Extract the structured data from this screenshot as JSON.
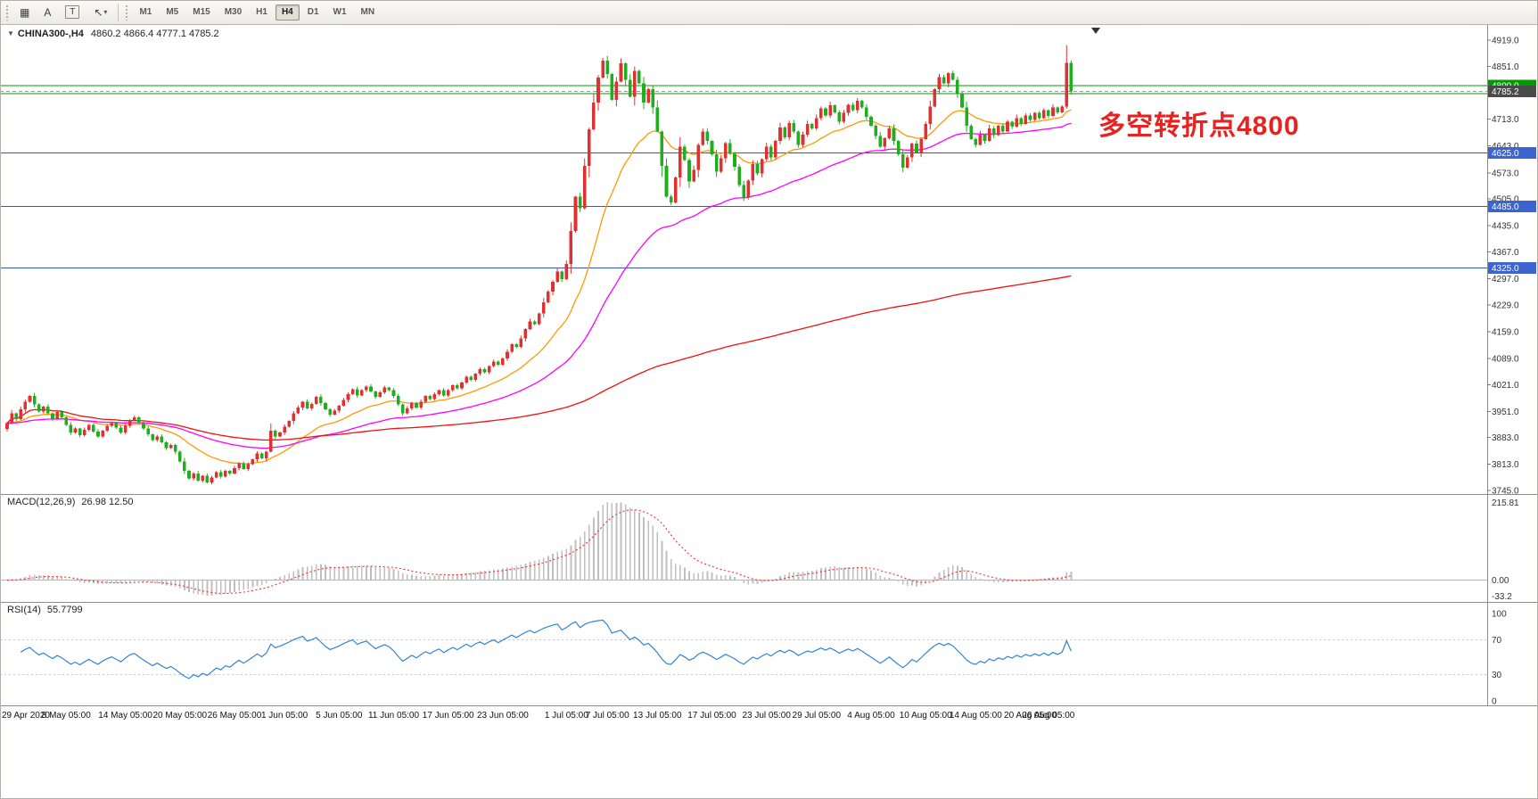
{
  "toolbar": {
    "tools": [
      {
        "name": "grid",
        "glyph": "▦"
      },
      {
        "name": "label",
        "glyph": "A"
      },
      {
        "name": "textbox",
        "glyph": "T"
      },
      {
        "name": "arrows",
        "glyph": "↖"
      },
      {
        "name": "caret",
        "glyph": "▾"
      }
    ],
    "timeframes": [
      {
        "label": "M1"
      },
      {
        "label": "M5"
      },
      {
        "label": "M15"
      },
      {
        "label": "M30"
      },
      {
        "label": "H1"
      },
      {
        "label": "H4",
        "active": true
      },
      {
        "label": "D1"
      },
      {
        "label": "W1"
      },
      {
        "label": "MN"
      }
    ]
  },
  "chart": {
    "marker_glyph": "▼",
    "symbol_label": "CHINA300-,H4",
    "quote": "4860.2 4866.4 4777.1 4785.2",
    "annotation": {
      "text": "多空转折点4800",
      "color": "#e62222"
    }
  },
  "chart_data": {
    "type": "candlestick",
    "symbol": "CHINA300-",
    "timeframe": "H4",
    "ohlc_current": {
      "open": 4860.2,
      "high": 4866.4,
      "low": 4777.1,
      "close": 4785.2
    },
    "up_color": "#e03030",
    "down_color": "#1fae1f",
    "first_open": 3905,
    "closes": [
      3920,
      3946,
      3931,
      3956,
      3976,
      3991,
      3969,
      3951,
      3963,
      3946,
      3931,
      3949,
      3936,
      3916,
      3896,
      3906,
      3889,
      3903,
      3916,
      3899,
      3886,
      3901,
      3913,
      3921,
      3909,
      3896,
      3913,
      3929,
      3936,
      3921,
      3906,
      3891,
      3876,
      3886,
      3871,
      3856,
      3863,
      3846,
      3821,
      3796,
      3776,
      3789,
      3771,
      3783,
      3766,
      3779,
      3793,
      3781,
      3796,
      3789,
      3803,
      3816,
      3801,
      3813,
      3826,
      3841,
      3829,
      3846,
      3901,
      3886,
      3896,
      3911,
      3926,
      3946,
      3961,
      3976,
      3959,
      3971,
      3989,
      3973,
      3956,
      3943,
      3953,
      3966,
      3981,
      3996,
      4009,
      3993,
      4006,
      4016,
      4003,
      3989,
      4001,
      4013,
      4006,
      3991,
      3969,
      3946,
      3959,
      3973,
      3961,
      3976,
      3991,
      3983,
      3996,
      4006,
      3993,
      4006,
      4019,
      4011,
      4026,
      4041,
      4033,
      4049,
      4061,
      4053,
      4069,
      4081,
      4073,
      4089,
      4106,
      4126,
      4119,
      4141,
      4166,
      4186,
      4179,
      4206,
      4236,
      4263,
      4289,
      4316,
      4296,
      4336,
      4421,
      4511,
      4481,
      4591,
      4686,
      4756,
      4821,
      4866,
      4831,
      4763,
      4811,
      4859,
      4816,
      4771,
      4839,
      4806,
      4756,
      4791,
      4743,
      4681,
      4591,
      4511,
      4496,
      4561,
      4641,
      4606,
      4551,
      4581,
      4646,
      4681,
      4656,
      4621,
      4576,
      4611,
      4651,
      4623,
      4589,
      4541,
      4509,
      4553,
      4596,
      4571,
      4609,
      4641,
      4613,
      4656,
      4691,
      4666,
      4703,
      4681,
      4646,
      4673,
      4701,
      4689,
      4716,
      4741,
      4723,
      4749,
      4731,
      4706,
      4729,
      4751,
      4736,
      4761,
      4743,
      4719,
      4696,
      4669,
      4641,
      4663,
      4689,
      4656,
      4621,
      4586,
      4613,
      4649,
      4626,
      4661,
      4701,
      4746,
      4791,
      4823,
      4806,
      4833,
      4816,
      4781,
      4743,
      4696,
      4661,
      4646,
      4673,
      4656,
      4689,
      4671,
      4696,
      4681,
      4706,
      4693,
      4716,
      4701,
      4723,
      4711,
      4729,
      4716,
      4736,
      4721,
      4743,
      4731,
      4746,
      4860,
      4785.2
    ],
    "overrides": {
      "233": {
        "high": 4906,
        "low": 4740
      },
      "234": {
        "open": 4860.2,
        "high": 4866.4,
        "low": 4777.1,
        "close": 4785.2
      }
    },
    "price_axis": {
      "min": 3745,
      "max": 4919,
      "ticks": [
        4919,
        4851,
        4713,
        4643,
        4573,
        4505,
        4435,
        4367,
        4297,
        4229,
        4159,
        4089,
        4021,
        3951,
        3883,
        3813,
        3745
      ]
    },
    "price_tags": [
      {
        "value": 4800.0,
        "label": "4800.0",
        "bg": "#009a00"
      },
      {
        "value": 4625.0,
        "label": "4625.0",
        "bg": "#3c64d0"
      },
      {
        "value": 4485.0,
        "label": "4485.0",
        "bg": "#3c64d0"
      },
      {
        "value": 4325.0,
        "label": "4325.0",
        "bg": "#3c64d0"
      },
      {
        "value": 4785.2,
        "label": "4785.2",
        "bg": "#4a4a4a"
      }
    ],
    "hlines": [
      {
        "value": 4800,
        "color": "#009a00"
      },
      {
        "value": 4779,
        "color": "#009a00"
      },
      {
        "value": 4625,
        "color": "#3356c8"
      },
      {
        "value": 4485,
        "color": "#3356c8"
      },
      {
        "value": 4325,
        "color": "#3356c8"
      },
      {
        "value": 4785.2,
        "color": "#9a9a9a",
        "dash": true
      }
    ],
    "moving_averages": [
      {
        "period": 20,
        "method": "ema",
        "color": "#ff9900"
      },
      {
        "period": 55,
        "method": "ema",
        "color": "#ff00ff"
      },
      {
        "period": 0,
        "method": "cum",
        "color": "#ee1111"
      }
    ],
    "x_labels": [
      [
        "29 Apr 2020",
        0
      ],
      [
        "8 May 05:00",
        13
      ],
      [
        "14 May 05:00",
        26
      ],
      [
        "20 May 05:00",
        38
      ],
      [
        "26 May 05:00",
        50
      ],
      [
        "1 Jun 05:00",
        61
      ],
      [
        "5 Jun 05:00",
        73
      ],
      [
        "11 Jun 05:00",
        85
      ],
      [
        "17 Jun 05:00",
        97
      ],
      [
        "23 Jun 05:00",
        109
      ],
      [
        "1 Jul 05:00",
        123
      ],
      [
        "7 Jul 05:00",
        132
      ],
      [
        "13 Jul 05:00",
        143
      ],
      [
        "17 Jul 05:00",
        155
      ],
      [
        "23 Jul 05:00",
        167
      ],
      [
        "29 Jul 05:00",
        178
      ],
      [
        "4 Aug 05:00",
        190
      ],
      [
        "10 Aug 05:00",
        202
      ],
      [
        "14 Aug 05:00",
        213
      ],
      [
        "20 Aug 05:00",
        225
      ],
      [
        "26 Aug 05:00",
        229
      ]
    ],
    "macd": {
      "label": "MACD(12,26,9)",
      "values_label": "26.98 12.50",
      "fast": 12,
      "slow": 26,
      "signal": 9,
      "axis_labels": [
        "215.81",
        "0.00",
        "-33.2"
      ],
      "hist_color": "#bfbfbf",
      "signal_color": "#ff2a2a"
    },
    "rsi": {
      "label": "RSI(14)",
      "value_label": "55.7799",
      "period": 14,
      "levels": [
        70,
        30
      ],
      "axis_labels": [
        "100",
        "70",
        "30",
        "0"
      ],
      "line_color": "#2f86d0"
    }
  }
}
